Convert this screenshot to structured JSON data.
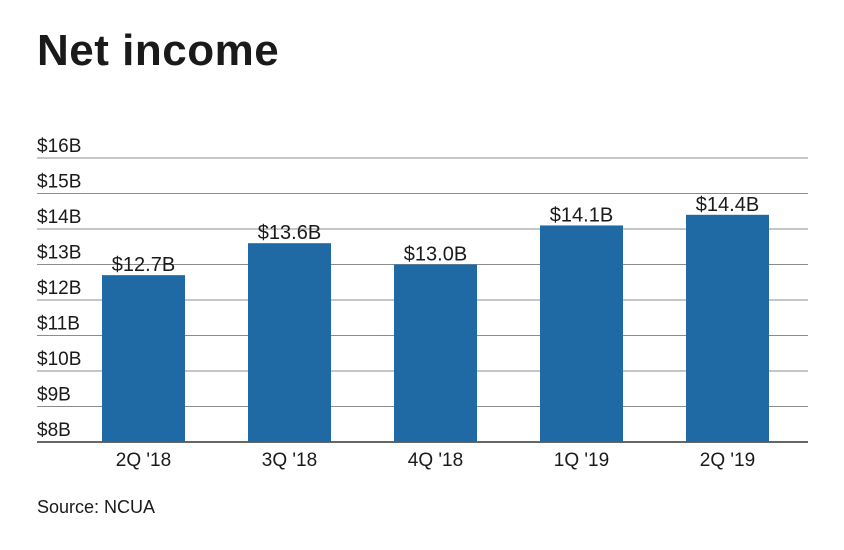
{
  "title": "Net income",
  "source": "Source: NCUA",
  "colors": {
    "bar": "#1f6aa5",
    "grid": "#8c8c8c",
    "axis": "#333333"
  },
  "chart_data": {
    "type": "bar",
    "title": "Net income",
    "categories": [
      "2Q '18",
      "3Q '18",
      "4Q '18",
      "1Q '19",
      "2Q '19"
    ],
    "values": [
      12.7,
      13.6,
      13.0,
      14.1,
      14.4
    ],
    "data_labels": [
      "$12.7B",
      "$13.6B",
      "$13.0B",
      "$14.1B",
      "$14.4B"
    ],
    "yticks": [
      8,
      9,
      10,
      11,
      12,
      13,
      14,
      15,
      16
    ],
    "ytick_labels": [
      "$8B",
      "$9B",
      "$10B",
      "$11B",
      "$12B",
      "$13B",
      "$14B",
      "$15B",
      "$16B"
    ],
    "ylim": [
      8,
      16
    ],
    "xlabel": "",
    "ylabel": "",
    "grid": true
  }
}
